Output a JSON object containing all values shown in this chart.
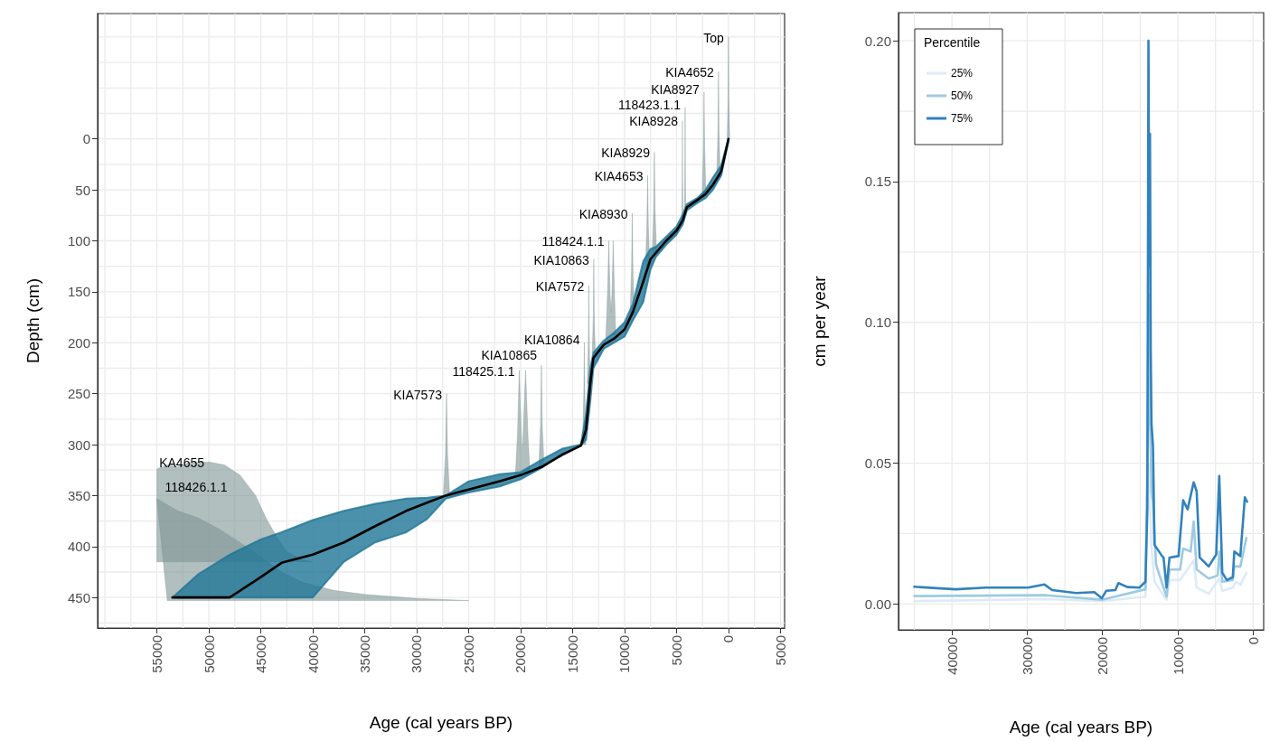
{
  "chart_data": [
    {
      "type": "line",
      "xlabel": "Age (cal years BP)",
      "ylabel": "Depth (cm)",
      "xlim": [
        60700,
        -5400
      ],
      "xticks": [
        55000,
        50000,
        45000,
        40000,
        35000,
        30000,
        25000,
        20000,
        15000,
        10000,
        5000,
        0,
        {
          "value": -5000,
          "label": "5000"
        }
      ],
      "ylim": [
        480,
        -123
      ],
      "yticks": [
        0,
        50,
        100,
        150,
        200,
        250,
        300,
        350,
        400,
        450
      ],
      "grid": true,
      "series": [
        {
          "type": "area",
          "name": "KA4655",
          "color": "#7f9494",
          "x": [
            55000,
            55000,
            54000,
            53000,
            52000,
            50000,
            48500,
            47000,
            45500,
            44500,
            43500,
            42500,
            41000,
            40000
          ],
          "values": [
            415,
            324,
            320,
            322,
            318,
            317,
            320,
            330,
            350,
            372,
            390,
            405,
            413,
            415
          ]
        },
        {
          "type": "area",
          "name": "118426.1.1",
          "color": "#7f9494",
          "x": [
            55000,
            53000,
            51000,
            49000,
            47000,
            45000,
            43000,
            41000,
            38000,
            35000,
            30000,
            25000,
            54000
          ],
          "values": [
            353,
            365,
            372,
            383,
            396,
            410,
            425,
            435,
            443,
            447,
            451,
            453,
            453
          ]
        },
        {
          "type": "area",
          "name": "Top",
          "color": "#7f9494",
          "x": [
            120,
            40,
            0,
            -40,
            -120
          ],
          "values": [
            0,
            -40,
            -100,
            -40,
            0
          ]
        },
        {
          "type": "area",
          "name": "KIA4652",
          "color": "#7f9494",
          "x": [
            1110,
            1010,
            960,
            910,
            810
          ],
          "values": [
            32,
            -10,
            -66,
            -10,
            32
          ]
        },
        {
          "type": "area",
          "name": "KIA8927",
          "color": "#7f9494",
          "x": [
            2530,
            2410,
            2350,
            2290,
            2170
          ],
          "values": [
            55,
            10,
            -46,
            10,
            55
          ]
        },
        {
          "type": "area",
          "name": "118423.1.1",
          "color": "#7f9494",
          "x": [
            4230,
            4190,
            4170,
            4150,
            4110
          ],
          "values": [
            75,
            30,
            -31,
            30,
            75
          ]
        },
        {
          "type": "area",
          "name": "KIA8928",
          "color": "#889c9c",
          "x": [
            4500,
            4450,
            4430,
            4410,
            4360
          ],
          "values": [
            78,
            35,
            -18,
            35,
            78
          ]
        },
        {
          "type": "area",
          "name": "KIA8929",
          "color": "#7f9494",
          "x": [
            7330,
            7200,
            7130,
            7060,
            6930
          ],
          "values": [
            112,
            70,
            13,
            70,
            112
          ]
        },
        {
          "type": "area",
          "name": "KIA4653",
          "color": "#7f9494",
          "x": [
            7980,
            7850,
            7780,
            7710,
            7580
          ],
          "values": [
            125,
            85,
            36,
            85,
            125
          ]
        },
        {
          "type": "area",
          "name": "KIA8930",
          "color": "#7f9494",
          "x": [
            9460,
            9330,
            9260,
            9190,
            9060
          ],
          "values": [
            172,
            130,
            73,
            130,
            172
          ]
        },
        {
          "type": "area",
          "name": "118424.1.1",
          "color": "#7f9494",
          "x": [
            11800,
            11600,
            11520,
            11400,
            11300,
            11200,
            11090,
            11000,
            10850
          ],
          "values": [
            196,
            140,
            100,
            150,
            170,
            150,
            100,
            140,
            192
          ]
        },
        {
          "type": "area",
          "name": "KIA10863",
          "color": "#7f9494",
          "x": [
            13100,
            13000,
            12960,
            12920,
            12820
          ],
          "values": [
            210,
            170,
            118,
            170,
            210
          ]
        },
        {
          "type": "area",
          "name": "KIA7572",
          "color": "#7f9494",
          "x": [
            13580,
            13480,
            13440,
            13400,
            13300
          ],
          "values": [
            240,
            200,
            144,
            200,
            240
          ]
        },
        {
          "type": "area",
          "name": "KIA10864",
          "color": "#7f9494",
          "x": [
            14050,
            13920,
            13870,
            13820,
            13720
          ],
          "values": [
            300,
            250,
            200,
            250,
            300
          ]
        },
        {
          "type": "area",
          "name": "KIA10865",
          "color": "#7f9494",
          "x": [
            18250,
            18080,
            18000,
            17920,
            17750
          ],
          "values": [
            322,
            280,
            222,
            280,
            322
          ]
        },
        {
          "type": "area",
          "name": "118425.1.1",
          "color": "#7f9494",
          "x": [
            20500,
            20300,
            20130,
            19900,
            19800,
            19520,
            19300,
            19100
          ],
          "values": [
            330,
            290,
            227,
            300,
            300,
            227,
            290,
            328
          ]
        },
        {
          "type": "area",
          "name": "KIA7573",
          "color": "#7f9494",
          "x": [
            27430,
            27230,
            27130,
            27030,
            26830
          ],
          "values": [
            350,
            310,
            250,
            310,
            350
          ]
        },
        {
          "color": "#000000",
          "x": [
            53500,
            51000,
            48000,
            45000,
            43000,
            40000,
            37000,
            34000,
            31000,
            29000,
            27200,
            25000,
            22000,
            20000,
            18000,
            16000,
            14200,
            13700,
            13300,
            13000,
            12000,
            11000,
            10000,
            9200,
            8200,
            7500,
            7000,
            6000,
            5000,
            4400,
            4000,
            3000,
            2200,
            1500,
            700,
            0
          ],
          "values": [
            450,
            450,
            450,
            430,
            416,
            408,
            396,
            380,
            365,
            357,
            350,
            344,
            336,
            330,
            322,
            310,
            301,
            285,
            240,
            215,
            202,
            196,
            187,
            170,
            140,
            118,
            112,
            100,
            90,
            80,
            67,
            60,
            54,
            45,
            32,
            0
          ],
          "lower": [
            450,
            427,
            408,
            393,
            386,
            374,
            365,
            358,
            353,
            352,
            350,
            336,
            329,
            327,
            315,
            304,
            300,
            270,
            225,
            210,
            198,
            190,
            180,
            162,
            120,
            108,
            106,
            96,
            86,
            74,
            64,
            58,
            50,
            38,
            26,
            0
          ],
          "upper": [
            450,
            450,
            450,
            450,
            450,
            450,
            415,
            396,
            386,
            373,
            353,
            347,
            341,
            334,
            323,
            309,
            301,
            295,
            258,
            225,
            206,
            200,
            194,
            178,
            160,
            128,
            116,
            104,
            94,
            84,
            70,
            63,
            58,
            50,
            36,
            2
          ]
        }
      ]
    },
    {
      "type": "line",
      "xlabel": "Age (cal years BP)",
      "ylabel": "cm per year",
      "legend_title": "Percentile",
      "legend": "top left",
      "xlim": [
        47100,
        -1400
      ],
      "xticks": [
        40000,
        30000,
        20000,
        10000,
        0
      ],
      "ylim": [
        -0.0092,
        0.21
      ],
      "yticks": [
        {
          "value": 0,
          "label": "0.00"
        },
        0.05,
        {
          "value": 0.1,
          "label": "0.10"
        },
        0.15,
        {
          "value": 0.2,
          "label": "0.20"
        }
      ],
      "grid": true,
      "series": [
        {
          "name": "25%",
          "color": "#deebf7",
          "x": [
            45000,
            27500,
            20100,
            14300,
            13900,
            13500,
            13100,
            11500,
            11100,
            9700,
            7900,
            7500,
            5900,
            4500,
            4100,
            2700,
            2300,
            1700,
            900
          ],
          "values": [
            0.001,
            0.0017,
            0.001,
            0.0026,
            0.05,
            0.02,
            0.0079,
            0.0015,
            0.0085,
            0.0085,
            0.0154,
            0.0058,
            0.0036,
            0.009,
            0.0047,
            0.0058,
            0.0079,
            0.0068,
            0.0111
          ]
        },
        {
          "name": "50%",
          "color": "#9ecae1",
          "x": [
            45000,
            27500,
            20100,
            14300,
            14000,
            13900,
            13800,
            13500,
            13300,
            12900,
            11500,
            11100,
            9700,
            9300,
            8300,
            7900,
            7500,
            5900,
            4700,
            4500,
            4100,
            2700,
            2500,
            1700,
            900
          ],
          "values": [
            0.0028,
            0.0031,
            0.0015,
            0.0052,
            0.06,
            0.11,
            0.08,
            0.04,
            0.036,
            0.014,
            0.0026,
            0.0122,
            0.0122,
            0.0197,
            0.0186,
            0.0293,
            0.0122,
            0.009,
            0.0101,
            0.0186,
            0.0079,
            0.0085,
            0.0133,
            0.0133,
            0.0234
          ]
        },
        {
          "name": "75%",
          "color": "#3182bd",
          "x": [
            45000,
            39500,
            35500,
            29900,
            27700,
            26700,
            23500,
            21100,
            20100,
            19500,
            18300,
            17900,
            16700,
            15100,
            14300,
            14050,
            13950,
            13900,
            13800,
            13700,
            13600,
            13500,
            13300,
            13100,
            12100,
            11900,
            11500,
            11100,
            9900,
            9300,
            8700,
            7900,
            7500,
            7100,
            5900,
            4900,
            4500,
            4100,
            3500,
            2700,
            2500,
            1700,
            1100,
            800
          ],
          "values": [
            0.0061,
            0.0052,
            0.0058,
            0.0058,
            0.0069,
            0.0049,
            0.0039,
            0.0042,
            0.002,
            0.0047,
            0.0049,
            0.0074,
            0.006,
            0.0058,
            0.0079,
            0.034,
            0.14,
            0.2,
            0.12,
            0.167,
            0.09,
            0.064,
            0.056,
            0.021,
            0.017,
            0.0165,
            0.0058,
            0.0165,
            0.017,
            0.0368,
            0.0336,
            0.0432,
            0.04,
            0.0165,
            0.0133,
            0.0176,
            0.0454,
            0.0111,
            0.0085,
            0.0095,
            0.0186,
            0.017,
            0.0379,
            0.0363
          ]
        }
      ]
    }
  ]
}
